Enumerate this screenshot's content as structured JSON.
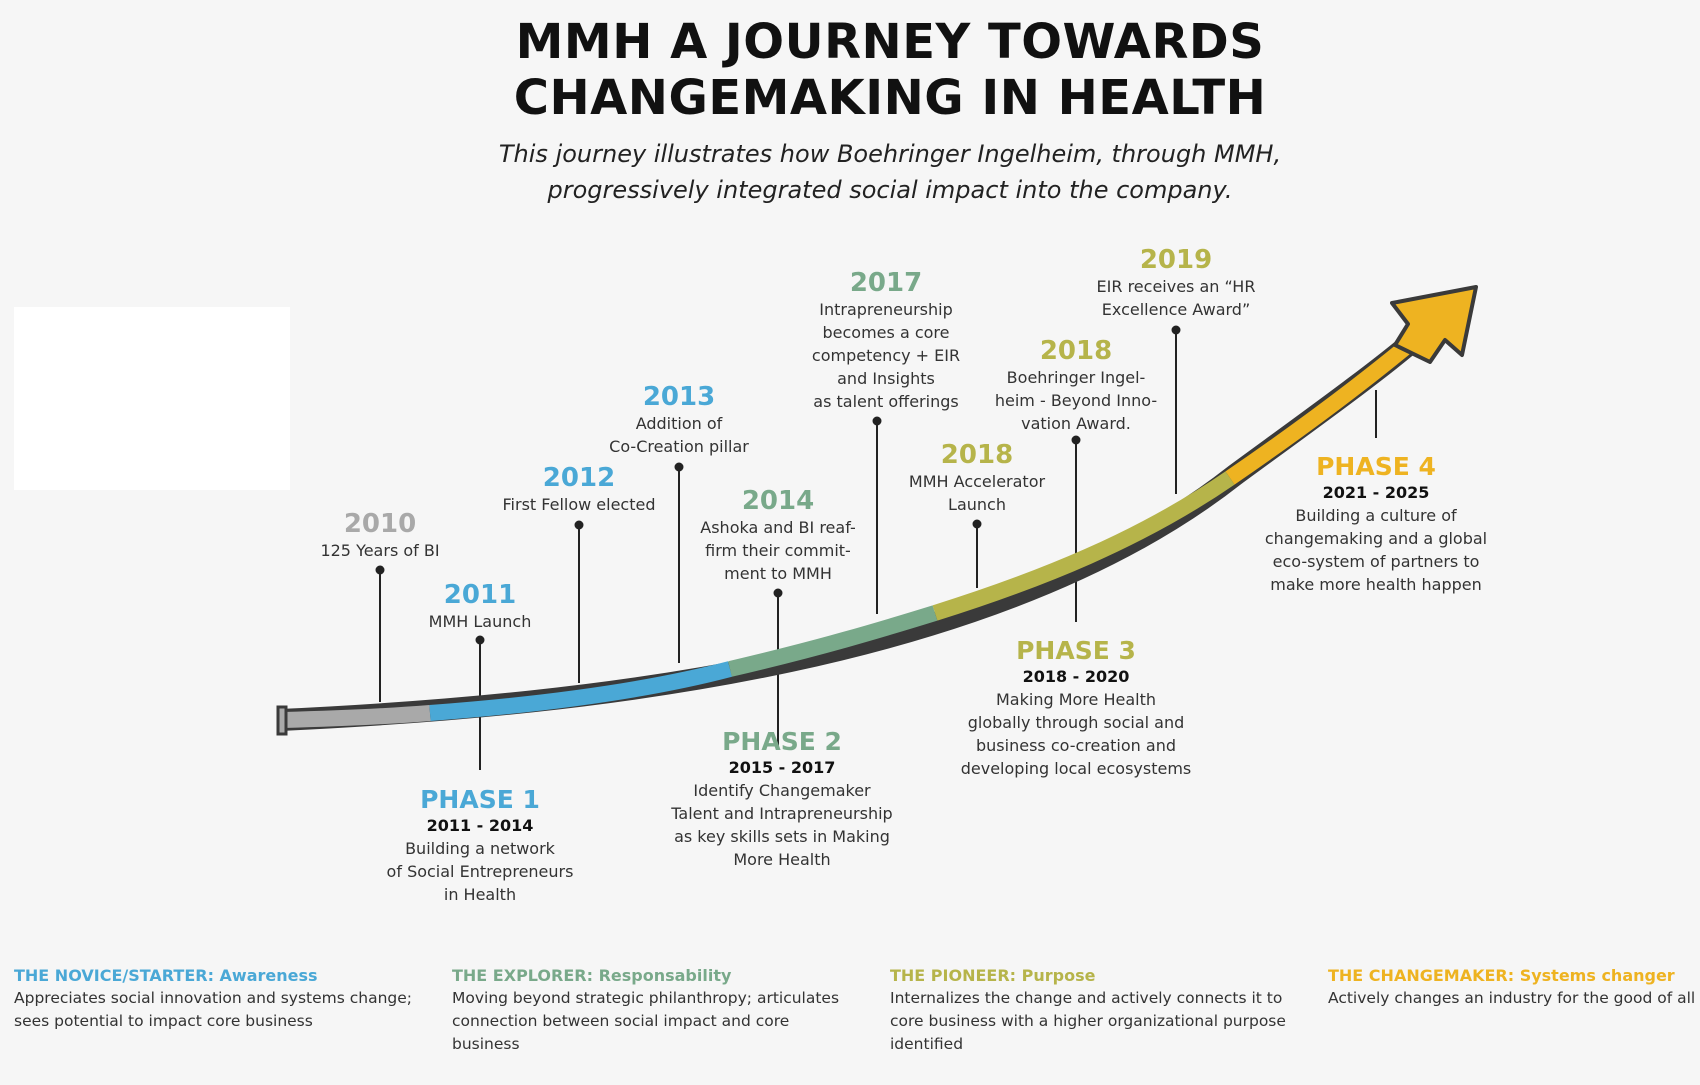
{
  "title": {
    "line1": "MMH A JOURNEY TOWARDS",
    "line2": "CHANGEMAKING IN HEALTH"
  },
  "subtitle": {
    "line1": "This journey illustrates how Boehringer Ingelheim, through MMH,",
    "line2": "progressively integrated social impact into the company."
  },
  "colors": {
    "gray": "#a9a9a9",
    "blue": "#4aa8d6",
    "green": "#79a98a",
    "olive": "#b6b44a",
    "gold": "#eeb321"
  },
  "milestones": [
    {
      "year": "2010",
      "lines": [
        "125 Years of BI"
      ],
      "color": "#a9a9a9"
    },
    {
      "year": "2011",
      "lines": [
        "MMH Launch"
      ],
      "color": "#4aa8d6"
    },
    {
      "year": "2012",
      "lines": [
        "First Fellow elected"
      ],
      "color": "#4aa8d6"
    },
    {
      "year": "2013",
      "lines": [
        "Addition of",
        "Co-Creation pillar"
      ],
      "color": "#4aa8d6"
    },
    {
      "year": "2014",
      "lines": [
        "Ashoka and BI reaf-",
        "firm their commit-",
        "ment to MMH"
      ],
      "color": "#79a98a"
    },
    {
      "year": "2017",
      "lines": [
        "Intrapreneurship",
        "becomes a core",
        "competency + EIR",
        "and Insights",
        "as talent offerings"
      ],
      "color": "#79a98a"
    },
    {
      "year": "2018",
      "lines": [
        "MMH Accelerator",
        "Launch"
      ],
      "color": "#b6b44a"
    },
    {
      "year": "2018",
      "lines": [
        "Boehringer Ingel-",
        "heim - Beyond Inno-",
        "vation Award."
      ],
      "color": "#b6b44a"
    },
    {
      "year": "2019",
      "lines": [
        "EIR receives an “HR",
        "Excellence Award”"
      ],
      "color": "#b6b44a"
    }
  ],
  "phases": [
    {
      "name": "PHASE 1",
      "range": "2011 - 2014",
      "lines": [
        "Building a network",
        "of Social Entrepreneurs",
        "in Health"
      ],
      "color": "#4aa8d6"
    },
    {
      "name": "PHASE 2",
      "range": "2015 - 2017",
      "lines": [
        "Identify Changemaker",
        "Talent and Intrapreneurship",
        "as key skills sets in Making",
        "More Health"
      ],
      "color": "#79a98a"
    },
    {
      "name": "PHASE 3",
      "range": "2018 - 2020",
      "lines": [
        "Making More Health",
        "globally through social and",
        "business co-creation and",
        "developing local ecosystems"
      ],
      "color": "#b6b44a"
    },
    {
      "name": "PHASE 4",
      "range": "2021 - 2025",
      "lines": [
        "Building a culture of",
        "changemaking and a global",
        "eco-system of partners to",
        "make more health happen"
      ],
      "color": "#eeb321"
    }
  ],
  "legend": [
    {
      "title": "THE NOVICE/STARTER: Awareness",
      "lines": [
        "Appreciates social innovation and systems change;",
        "sees potential to impact core business"
      ],
      "color": "#4aa8d6"
    },
    {
      "title": "THE EXPLORER: Responsability",
      "lines": [
        "Moving beyond strategic philanthropy; articulates",
        "connection between social impact and core",
        "business"
      ],
      "color": "#79a98a"
    },
    {
      "title": "THE PIONEER: Purpose",
      "lines": [
        "Internalizes the change and actively connects it to",
        "core business with a higher organizational purpose",
        "identified"
      ],
      "color": "#b6b44a"
    },
    {
      "title": "THE CHANGEMAKER: Systems changer",
      "lines": [
        "Actively changes an industry for the good of all"
      ],
      "color": "#eeb321"
    }
  ]
}
